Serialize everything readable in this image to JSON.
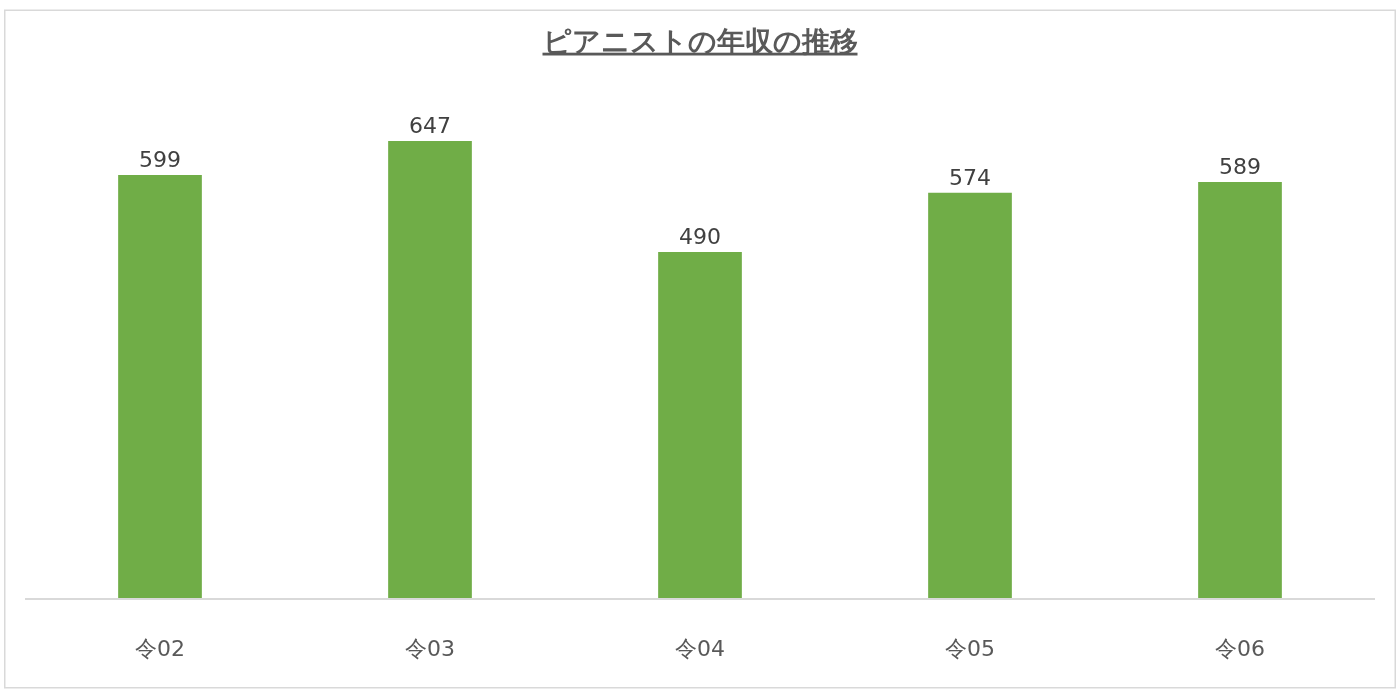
{
  "chart_data": {
    "type": "bar",
    "title": "ピアニストの年収の推移",
    "categories": [
      "令02",
      "令03",
      "令04",
      "令05",
      "令06"
    ],
    "values": [
      599,
      647,
      490,
      574,
      589
    ],
    "color": "#70ad47",
    "data_labels": true,
    "legend": false
  }
}
